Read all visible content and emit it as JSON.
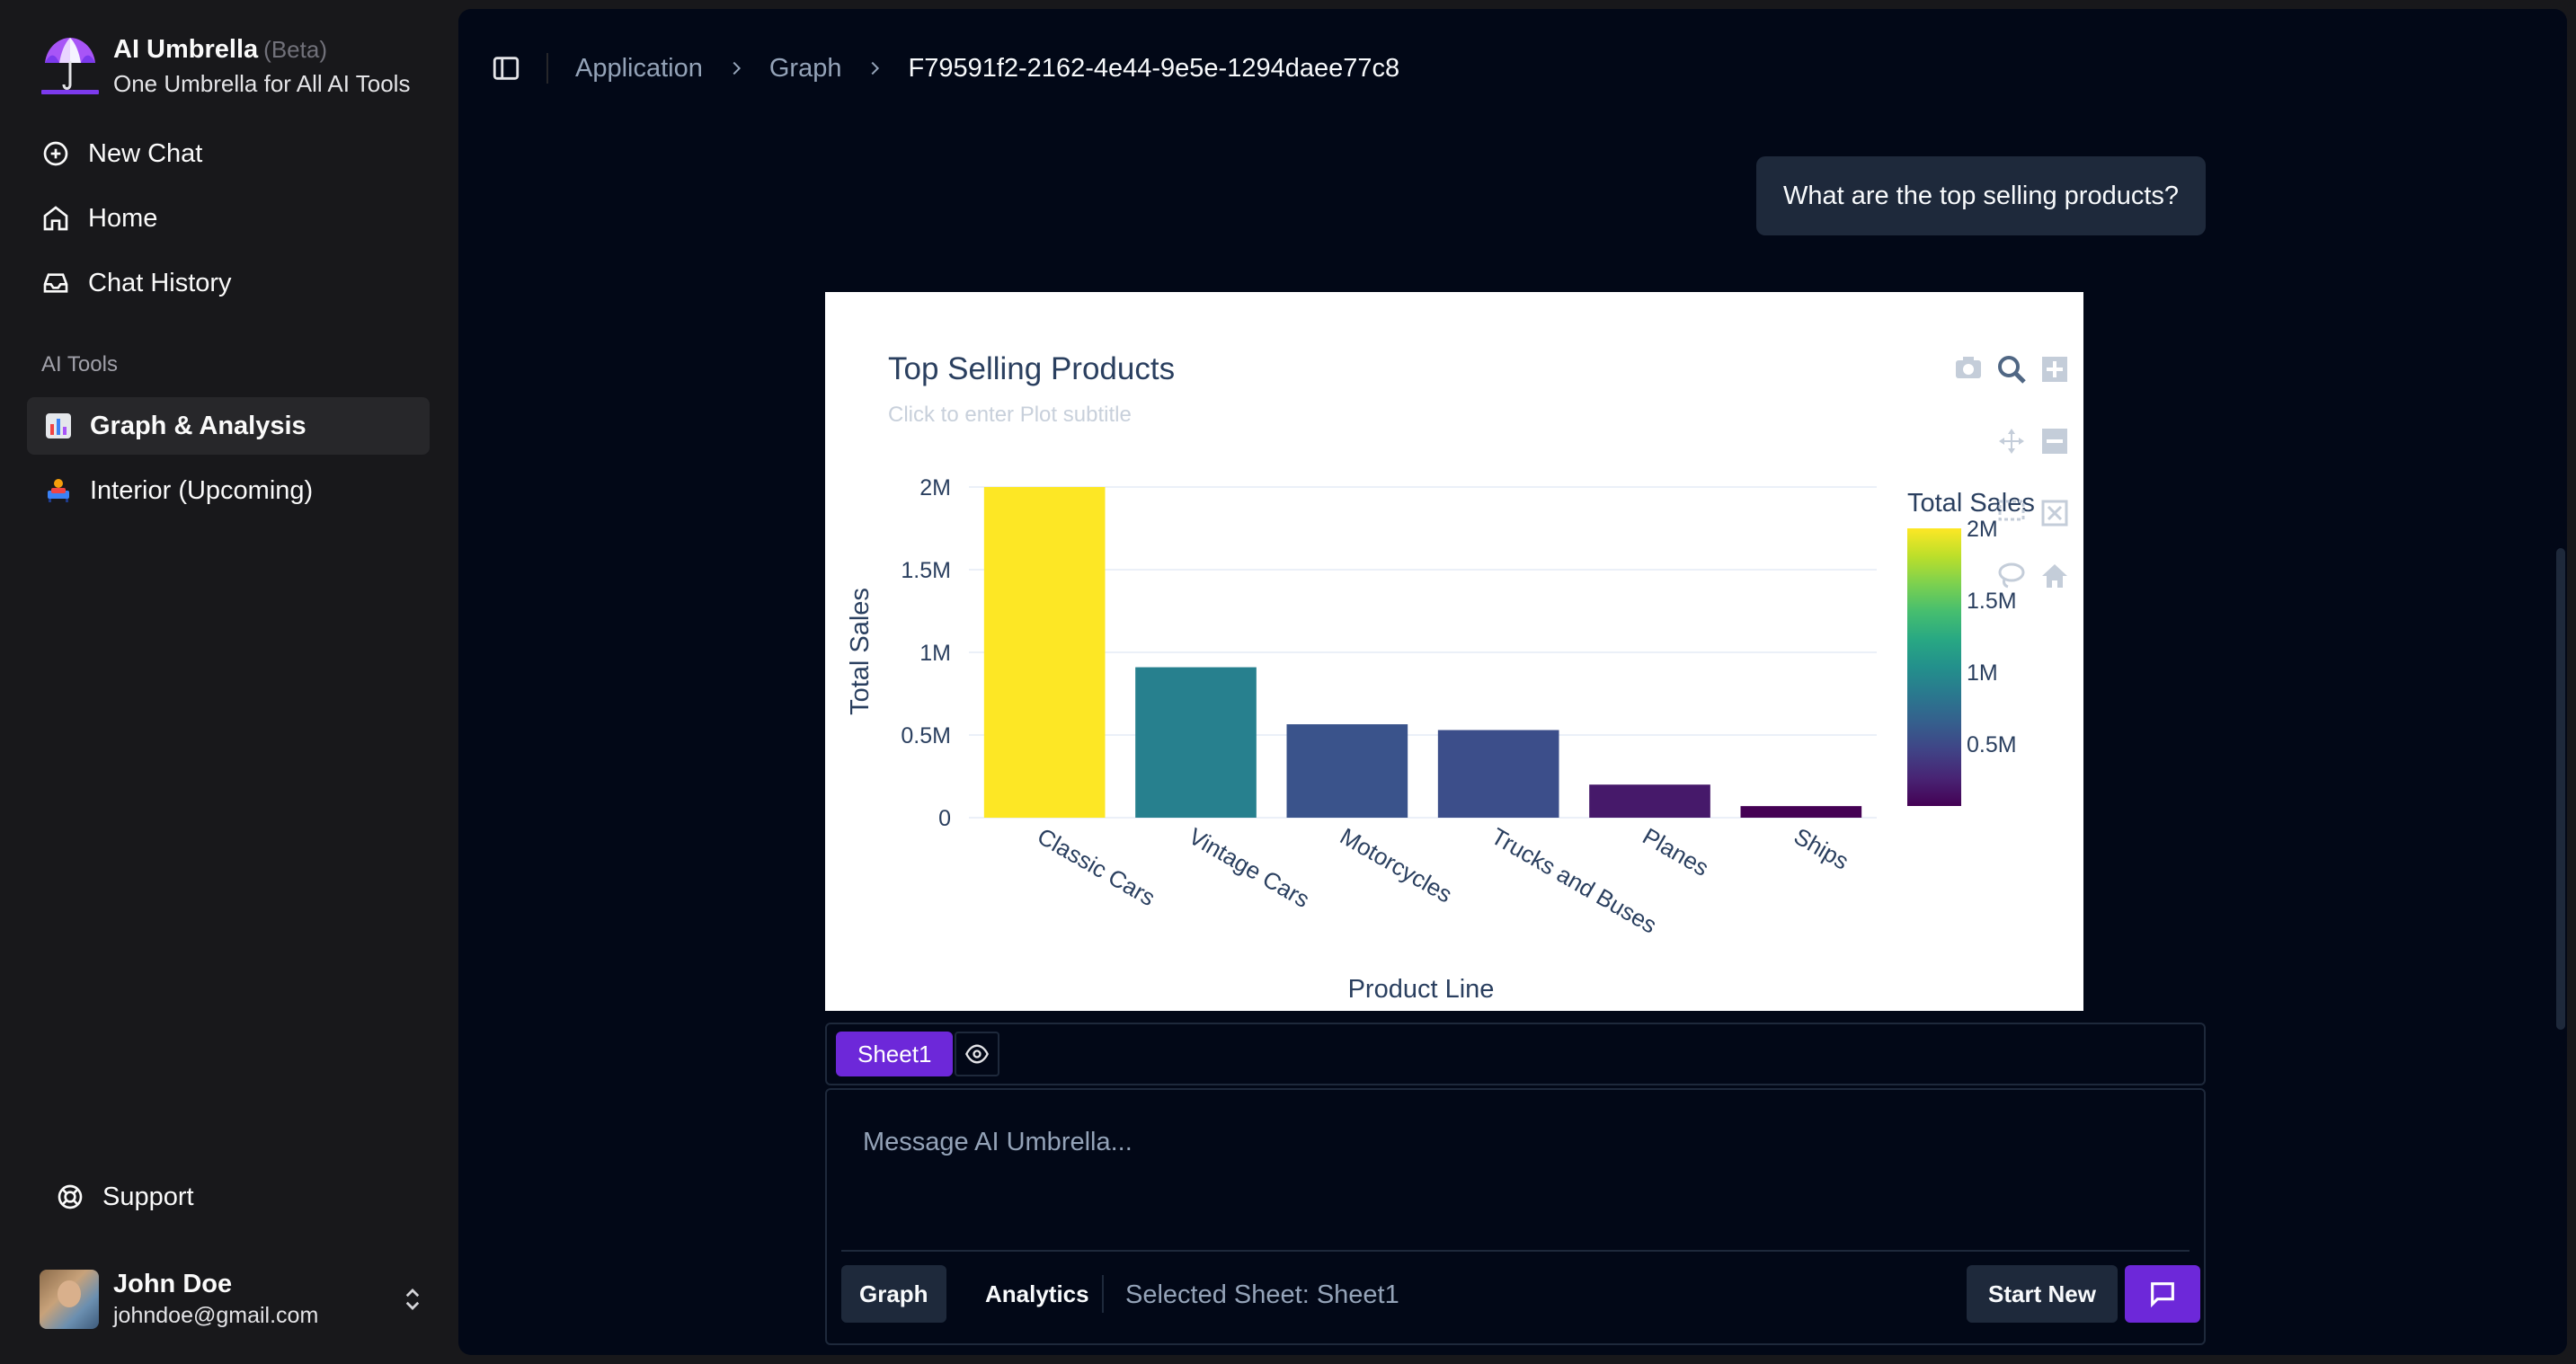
{
  "app": {
    "name": "AI Umbrella",
    "beta": "(Beta)",
    "tagline": "One Umbrella for All AI Tools"
  },
  "nav": {
    "items": [
      {
        "label": "New Chat",
        "icon": "plus-circle-icon"
      },
      {
        "label": "Home",
        "icon": "home-icon"
      },
      {
        "label": "Chat History",
        "icon": "inbox-icon"
      }
    ]
  },
  "tools": {
    "section_label": "AI Tools",
    "items": [
      {
        "label": "Graph & Analysis",
        "icon": "bar-chart-emoji-icon",
        "active": true
      },
      {
        "label": "Interior (Upcoming)",
        "icon": "couch-emoji-icon",
        "active": false
      }
    ]
  },
  "support": {
    "label": "Support"
  },
  "user": {
    "name": "John Doe",
    "email": "johndoe@gmail.com"
  },
  "breadcrumb": {
    "items": [
      "Application",
      "Graph"
    ],
    "current": "F79591f2-2162-4e44-9e5e-1294daee77c8"
  },
  "chat": {
    "user_message": "What are the top selling products?"
  },
  "chart_data": {
    "type": "bar",
    "title": "Top Selling Products",
    "subtitle_placeholder": "Click to enter Plot subtitle",
    "xlabel": "Product Line",
    "ylabel": "Total Sales",
    "categories": [
      "Classic Cars",
      "Vintage Cars",
      "Motorcycles",
      "Trucks and Buses",
      "Planes",
      "Ships"
    ],
    "values": [
      2000000,
      910000,
      565000,
      530000,
      200000,
      70000
    ],
    "ylim": [
      0,
      2000000
    ],
    "yticks": [
      {
        "value": 0,
        "label": "0"
      },
      {
        "value": 500000,
        "label": "0.5M"
      },
      {
        "value": 1000000,
        "label": "1M"
      },
      {
        "value": 1500000,
        "label": "1.5M"
      },
      {
        "value": 2000000,
        "label": "2M"
      }
    ],
    "colorbar": {
      "title": "Total Sales",
      "colorscale": "viridis",
      "tick_labels": [
        "2M",
        "1.5M",
        "1M",
        "0.5M"
      ]
    },
    "grid": true,
    "legend": "right"
  },
  "sheets": {
    "tabs": [
      "Sheet1"
    ]
  },
  "composer": {
    "placeholder": "Message AI Umbrella...",
    "modes": [
      "Graph",
      "Analysis"
    ],
    "modes_display": [
      "Graph",
      "Analytics"
    ],
    "selected_sheet": "Selected Sheet: Sheet1",
    "start_new": "Start New"
  },
  "colors": {
    "accent": "#6d28d9",
    "panel": "#020817",
    "sidebar": "#18181b"
  }
}
